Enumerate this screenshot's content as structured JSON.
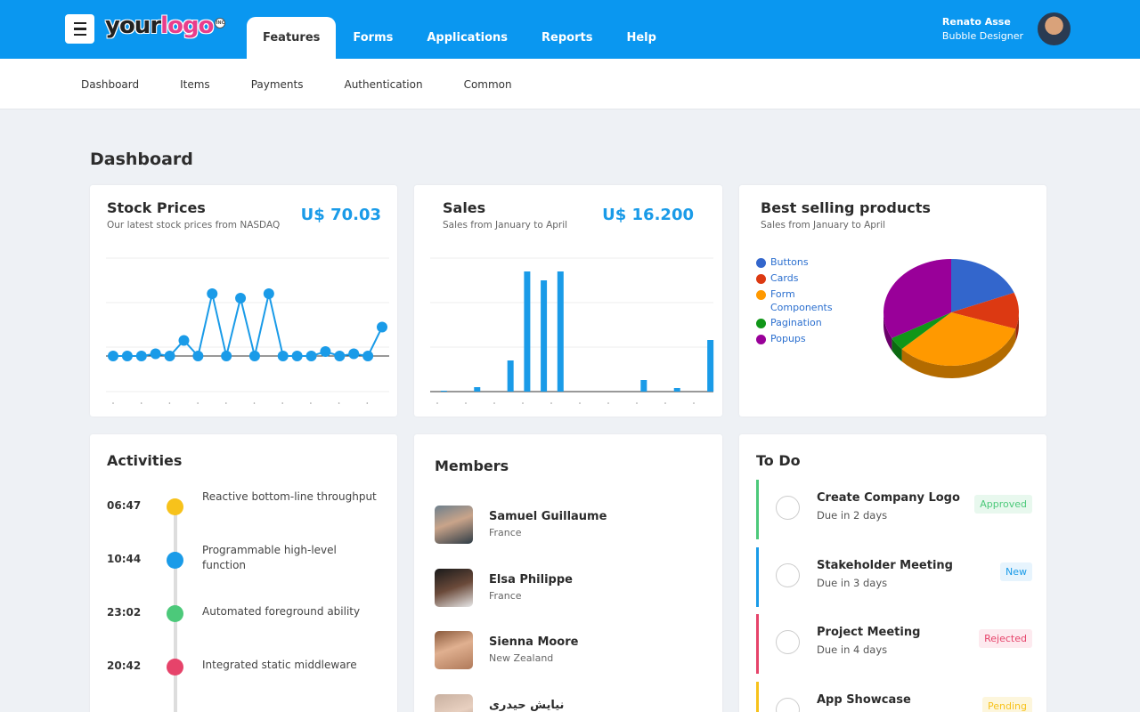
{
  "header": {
    "menu_icon": "hamburger-icon",
    "logo": {
      "part1": "your",
      "part2": "logo",
      "mark": "INC"
    },
    "nav": [
      "Features",
      "Forms",
      "Applications",
      "Reports",
      "Help"
    ],
    "active_nav": "Features",
    "user": {
      "name": "Renato Asse",
      "role": "Bubble Designer"
    }
  },
  "subnav": [
    "Dashboard",
    "Items",
    "Payments",
    "Authentication",
    "Common"
  ],
  "page_title": "Dashboard",
  "stock": {
    "title": "Stock Prices",
    "subtitle": "Our latest stock prices from NASDAQ",
    "amount": "U$ 70.03",
    "color": "#1a9be8"
  },
  "sales": {
    "title": "Sales",
    "subtitle": "Sales from January to April",
    "amount": "U$ 16.200",
    "color": "#1a9be8"
  },
  "best": {
    "title": "Best selling products",
    "subtitle": "Sales from January to April",
    "legend": [
      {
        "label": "Buttons",
        "color": "#3366cc"
      },
      {
        "label": "Cards",
        "color": "#dc3912"
      },
      {
        "label": "Form Components",
        "color": "#ff9900"
      },
      {
        "label": "Pagination",
        "color": "#109618"
      },
      {
        "label": "Popups",
        "color": "#990099"
      }
    ]
  },
  "chart_data": [
    {
      "type": "line",
      "values": [
        0,
        0,
        0,
        0.5,
        0,
        3.5,
        0,
        14,
        0,
        13,
        0,
        14,
        0,
        0,
        0,
        1,
        0,
        0.5,
        0,
        6.5
      ],
      "ylim": [
        -8,
        22
      ]
    },
    {
      "type": "bar",
      "values": [
        0.1,
        0,
        0.5,
        0,
        3.5,
        13.5,
        12.5,
        13.5,
        0,
        0,
        0,
        0,
        1.3,
        0,
        0.4,
        0,
        5.8
      ],
      "ylim": [
        0,
        15
      ]
    },
    {
      "type": "pie",
      "labels": [
        "Buttons",
        "Cards",
        "Form Components",
        "Pagination",
        "Popups"
      ],
      "values": [
        19,
        11,
        33,
        4,
        33
      ]
    }
  ],
  "activities": {
    "title": "Activities",
    "items": [
      {
        "time": "06:47",
        "text": "Reactive bottom-line throughput",
        "color": "#f7c21b"
      },
      {
        "time": "10:44",
        "text": "Programmable high-level function",
        "color": "#1a9be8"
      },
      {
        "time": "23:02",
        "text": "Automated foreground ability",
        "color": "#4cc97a"
      },
      {
        "time": "20:42",
        "text": "Integrated static middleware",
        "color": "#e6436a"
      }
    ]
  },
  "members": {
    "title": "Members",
    "items": [
      {
        "name": "Samuel Guillaume",
        "country": "France"
      },
      {
        "name": "Elsa Philippe",
        "country": "France"
      },
      {
        "name": "Sienna Moore",
        "country": "New Zealand"
      },
      {
        "name": "نیایش حیدری",
        "country": ""
      }
    ]
  },
  "todo": {
    "title": "To Do",
    "items": [
      {
        "title": "Create Company Logo",
        "due": "Due in 2 days",
        "status": "Approved",
        "color": "#4cc97a",
        "badge_bg": "#e8f8ee",
        "badge_fg": "#4cc97a"
      },
      {
        "title": "Stakeholder Meeting",
        "due": "Due in 3 days",
        "status": "New",
        "color": "#1a9be8",
        "badge_bg": "#e7f4fd",
        "badge_fg": "#1a9be8"
      },
      {
        "title": "Project Meeting",
        "due": "Due in 4 days",
        "status": "Rejected",
        "color": "#e6436a",
        "badge_bg": "#fdeaef",
        "badge_fg": "#e6436a"
      },
      {
        "title": "App Showcase",
        "due": "",
        "status": "Pending",
        "color": "#f7c21b",
        "badge_bg": "#fdf6dc",
        "badge_fg": "#f7c21b"
      }
    ]
  }
}
